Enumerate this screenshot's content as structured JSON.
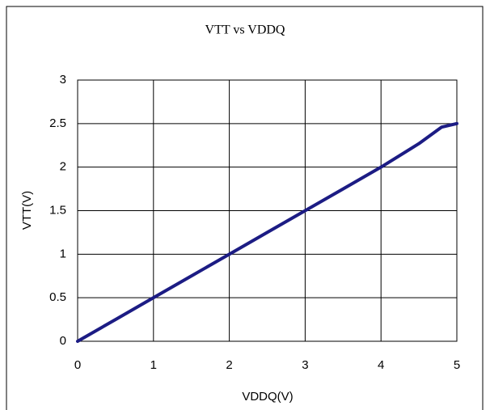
{
  "chart_data": {
    "type": "line",
    "title": "VTT vs VDDQ",
    "xlabel": "VDDQ(V)",
    "ylabel": "VTT(V)",
    "x": [
      0,
      0.5,
      1,
      1.5,
      2,
      2.5,
      3,
      3.5,
      4,
      4.5,
      4.8,
      5
    ],
    "series": [
      {
        "name": "VTT",
        "color": "#1c1c84",
        "values": [
          0,
          0.25,
          0.5,
          0.75,
          1,
          1.25,
          1.5,
          1.75,
          2,
          2.27,
          2.46,
          2.5
        ]
      }
    ],
    "xlim": [
      0,
      5
    ],
    "xticks": [
      0,
      1,
      2,
      3,
      4,
      5
    ],
    "ylim": [
      0,
      3
    ],
    "yticks": [
      0,
      0.5,
      1,
      1.5,
      2,
      2.5,
      3
    ],
    "grid": true
  }
}
